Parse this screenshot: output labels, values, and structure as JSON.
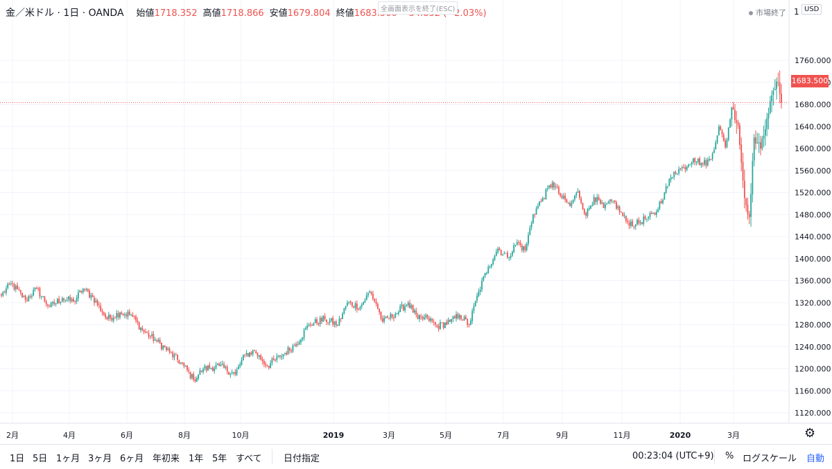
{
  "legend": {
    "symbol": "金／米ドル · 1日 · OANDA",
    "open_label": "始値",
    "open": "1718.352",
    "high_label": "高値",
    "high": "1718.866",
    "low_label": "安値",
    "low": "1679.804",
    "close_label": "終値",
    "close": "1683.500",
    "change": "−34.852 (−2.03%)"
  },
  "fullscreen_hint": "全画面表示を終了(ESC)",
  "market_status": "市場終了",
  "top_right_digit": "1",
  "currency": "USD",
  "last_price_label": "1683.500",
  "colors": {
    "up": "#26a69a",
    "down": "#ef5350",
    "grid": "#f0f3fa"
  },
  "chart_data": {
    "type": "candlestick",
    "yticks": [
      1120,
      1160,
      1200,
      1240,
      1280,
      1320,
      1360,
      1400,
      1440,
      1480,
      1520,
      1560,
      1600,
      1640,
      1680,
      1720,
      1760
    ],
    "ytick_labels": [
      "1120.000",
      "1160.000",
      "1200.000",
      "1240.000",
      "1280.000",
      "1320.000",
      "1360.000",
      "1400.000",
      "1440.000",
      "1480.000",
      "1520.000",
      "1560.000",
      "1600.000",
      "1640.000",
      "1680.000",
      "1720.000",
      "1760.000"
    ],
    "xtick_labels": [
      "2月",
      "4月",
      "6月",
      "8月",
      "10月",
      "2019",
      "3月",
      "5月",
      "7月",
      "9月",
      "11月",
      "2020",
      "3月"
    ],
    "xtick_bold": [
      false,
      false,
      false,
      false,
      false,
      true,
      false,
      false,
      false,
      false,
      false,
      true,
      false
    ],
    "last_price": 1683.5,
    "grid": true,
    "anchors": [
      {
        "i": 0,
        "p": 1333
      },
      {
        "i": 6,
        "p": 1355
      },
      {
        "i": 15,
        "p": 1325
      },
      {
        "i": 22,
        "p": 1345
      },
      {
        "i": 30,
        "p": 1312
      },
      {
        "i": 38,
        "p": 1328
      },
      {
        "i": 45,
        "p": 1322
      },
      {
        "i": 51,
        "p": 1345
      },
      {
        "i": 57,
        "p": 1330
      },
      {
        "i": 66,
        "p": 1290
      },
      {
        "i": 74,
        "p": 1302
      },
      {
        "i": 81,
        "p": 1298
      },
      {
        "i": 88,
        "p": 1270
      },
      {
        "i": 97,
        "p": 1250
      },
      {
        "i": 105,
        "p": 1230
      },
      {
        "i": 114,
        "p": 1205
      },
      {
        "i": 120,
        "p": 1180
      },
      {
        "i": 126,
        "p": 1200
      },
      {
        "i": 136,
        "p": 1205
      },
      {
        "i": 146,
        "p": 1190
      },
      {
        "i": 152,
        "p": 1225
      },
      {
        "i": 158,
        "p": 1232
      },
      {
        "i": 166,
        "p": 1205
      },
      {
        "i": 174,
        "p": 1222
      },
      {
        "i": 184,
        "p": 1245
      },
      {
        "i": 192,
        "p": 1280
      },
      {
        "i": 202,
        "p": 1290
      },
      {
        "i": 210,
        "p": 1280
      },
      {
        "i": 216,
        "p": 1320
      },
      {
        "i": 224,
        "p": 1312
      },
      {
        "i": 230,
        "p": 1340
      },
      {
        "i": 234,
        "p": 1318
      },
      {
        "i": 238,
        "p": 1285
      },
      {
        "i": 246,
        "p": 1300
      },
      {
        "i": 254,
        "p": 1320
      },
      {
        "i": 260,
        "p": 1290
      },
      {
        "i": 266,
        "p": 1292
      },
      {
        "i": 272,
        "p": 1277
      },
      {
        "i": 280,
        "p": 1285
      },
      {
        "i": 286,
        "p": 1298
      },
      {
        "i": 292,
        "p": 1280
      },
      {
        "i": 298,
        "p": 1340
      },
      {
        "i": 304,
        "p": 1385
      },
      {
        "i": 310,
        "p": 1418
      },
      {
        "i": 316,
        "p": 1402
      },
      {
        "i": 322,
        "p": 1430
      },
      {
        "i": 327,
        "p": 1415
      },
      {
        "i": 332,
        "p": 1480
      },
      {
        "i": 338,
        "p": 1510
      },
      {
        "i": 344,
        "p": 1538
      },
      {
        "i": 350,
        "p": 1510
      },
      {
        "i": 355,
        "p": 1496
      },
      {
        "i": 360,
        "p": 1522
      },
      {
        "i": 365,
        "p": 1478
      },
      {
        "i": 370,
        "p": 1512
      },
      {
        "i": 376,
        "p": 1492
      },
      {
        "i": 382,
        "p": 1505
      },
      {
        "i": 390,
        "p": 1468
      },
      {
        "i": 396,
        "p": 1462
      },
      {
        "i": 402,
        "p": 1472
      },
      {
        "i": 408,
        "p": 1480
      },
      {
        "i": 414,
        "p": 1520
      },
      {
        "i": 420,
        "p": 1558
      },
      {
        "i": 426,
        "p": 1565
      },
      {
        "i": 432,
        "p": 1582
      },
      {
        "i": 438,
        "p": 1572
      },
      {
        "i": 443,
        "p": 1580
      },
      {
        "i": 448,
        "p": 1640
      },
      {
        "i": 452,
        "p": 1602
      },
      {
        "i": 456,
        "p": 1675
      },
      {
        "i": 460,
        "p": 1642
      },
      {
        "i": 464,
        "p": 1510
      },
      {
        "i": 467,
        "p": 1475
      },
      {
        "i": 470,
        "p": 1620
      },
      {
        "i": 474,
        "p": 1600
      },
      {
        "i": 478,
        "p": 1655
      },
      {
        "i": 482,
        "p": 1705
      },
      {
        "i": 485,
        "p": 1720
      },
      {
        "i": 487,
        "p": 1683.5
      }
    ]
  },
  "bottom_bar": {
    "ranges": [
      "1日",
      "5日",
      "1ヶ月",
      "3ヶ月",
      "6ヶ月",
      "年初来",
      "1年",
      "5年",
      "すべて"
    ],
    "date_jump": "日付指定",
    "clock": "00:23:04 (UTC+9)",
    "percent": "%",
    "log_scale": "ログスケール",
    "auto": "自動"
  }
}
